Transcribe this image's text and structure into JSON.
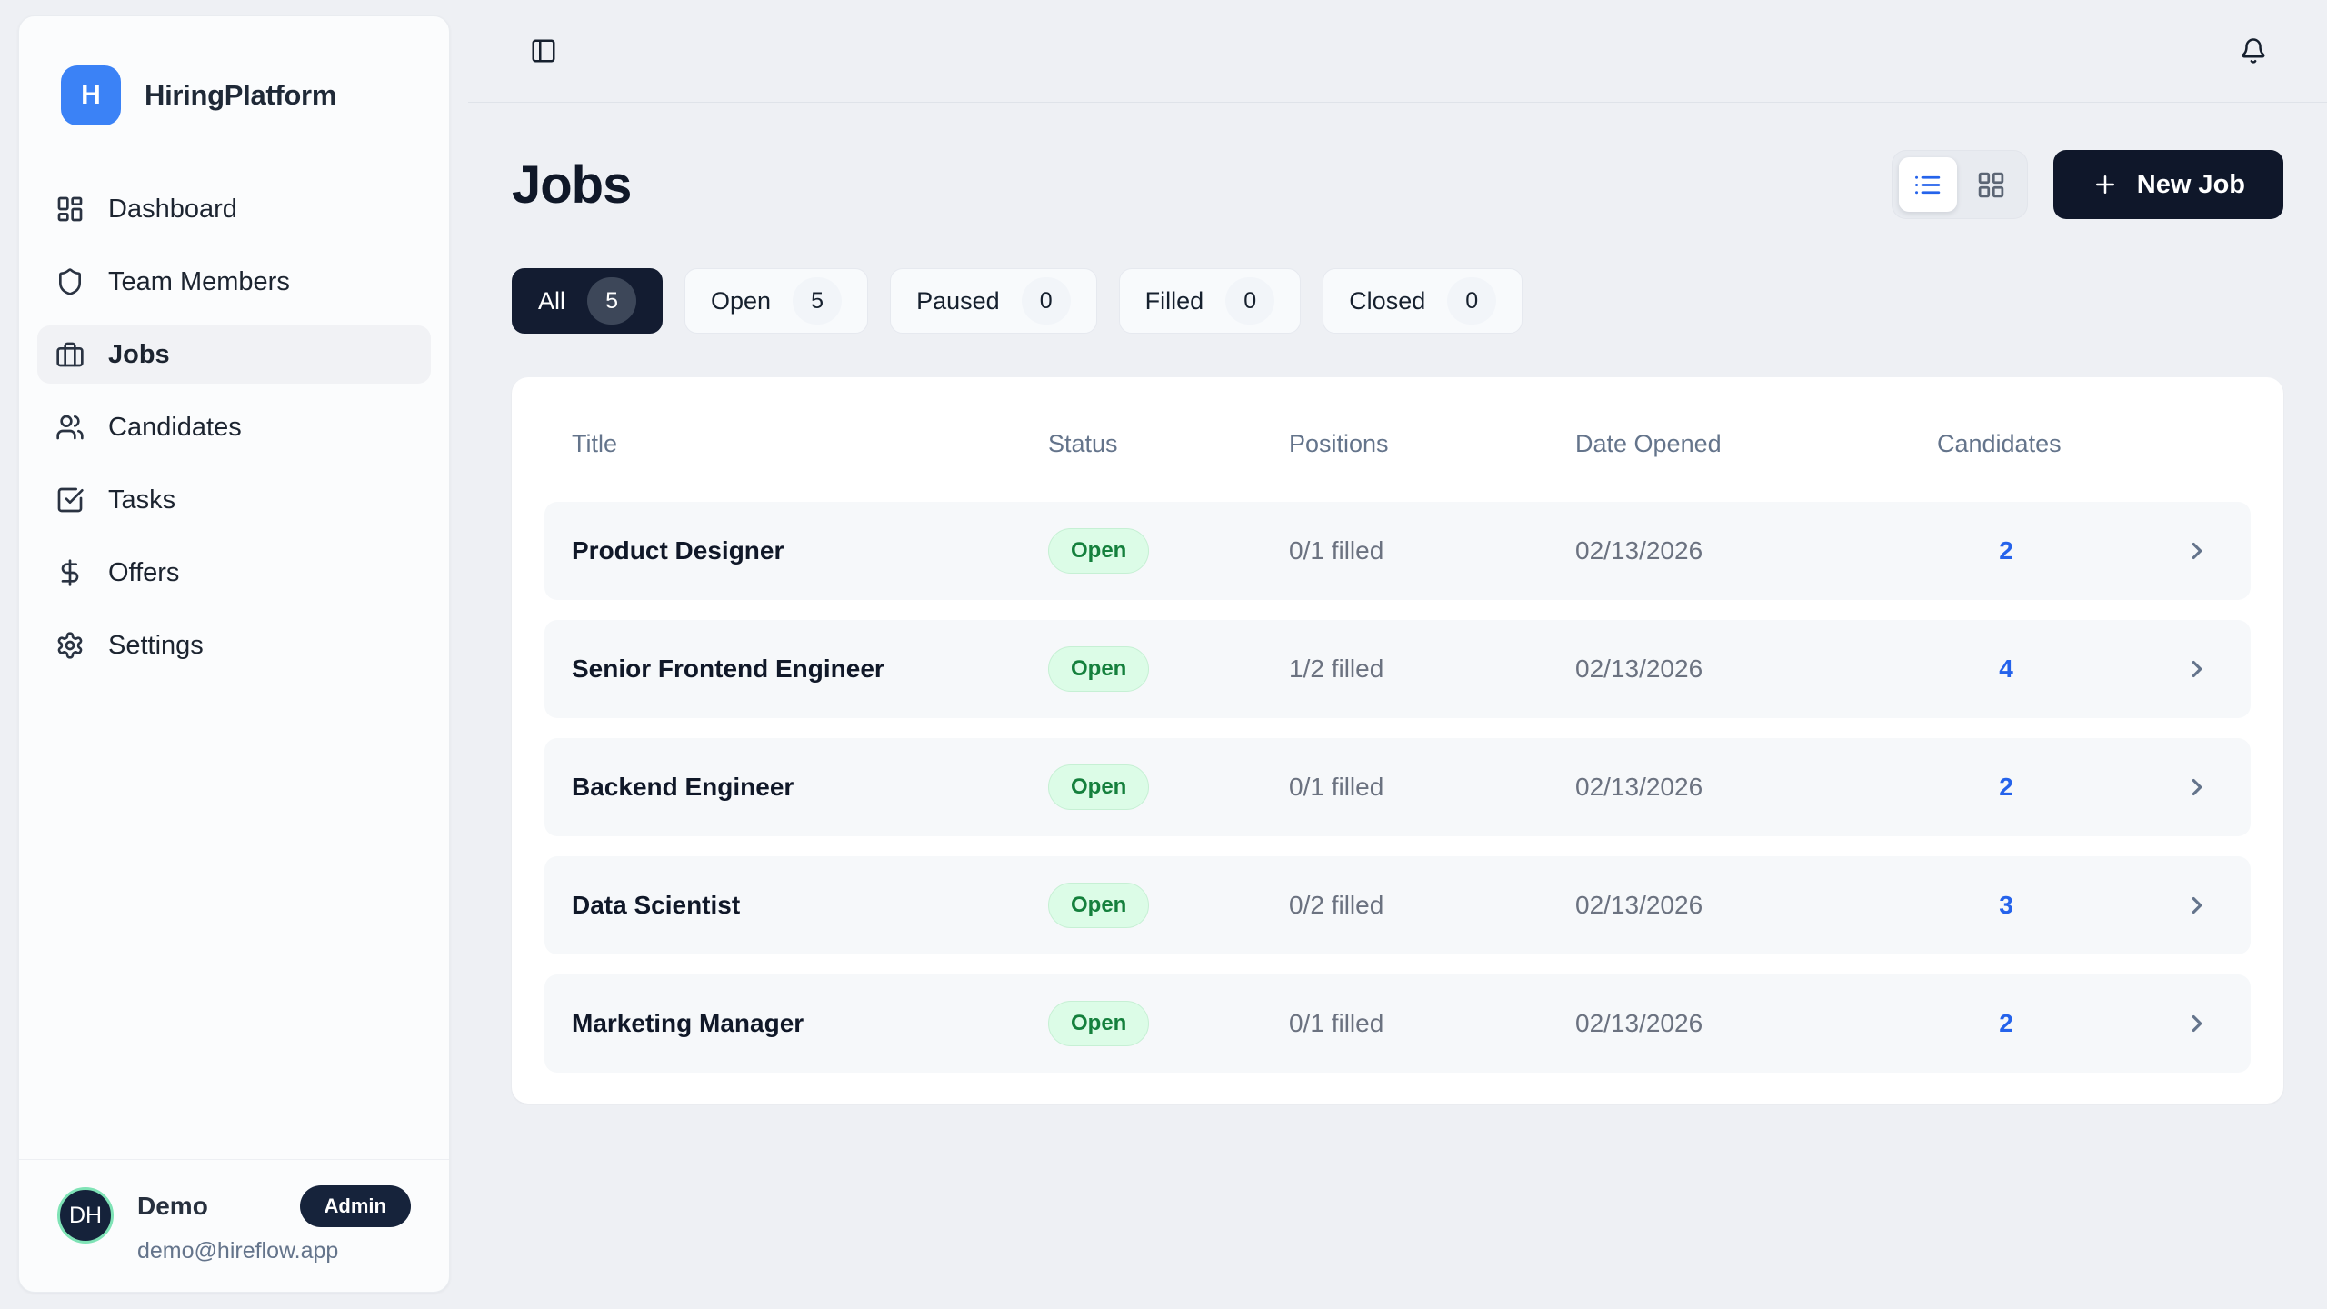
{
  "app": {
    "name": "HiringPlatform",
    "logo_letter": "H"
  },
  "sidebar": {
    "items": [
      {
        "label": "Dashboard",
        "icon": "dashboard-icon",
        "active": false
      },
      {
        "label": "Team Members",
        "icon": "shield-icon",
        "active": false
      },
      {
        "label": "Jobs",
        "icon": "briefcase-icon",
        "active": true
      },
      {
        "label": "Candidates",
        "icon": "users-icon",
        "active": false
      },
      {
        "label": "Tasks",
        "icon": "task-check-icon",
        "active": false
      },
      {
        "label": "Offers",
        "icon": "dollar-icon",
        "active": false
      },
      {
        "label": "Settings",
        "icon": "gear-icon",
        "active": false
      }
    ],
    "user": {
      "initials": "DH",
      "name": "Demo",
      "role_badge": "Admin",
      "email": "demo@hireflow.app"
    }
  },
  "topbar": {
    "icons": [
      "panel-left-icon",
      "bell-icon"
    ]
  },
  "header": {
    "title": "Jobs",
    "new_job_label": "New Job"
  },
  "view_modes": [
    {
      "name": "list-view-icon",
      "active": true
    },
    {
      "name": "grid-view-icon",
      "active": false
    }
  ],
  "filters": [
    {
      "label": "All",
      "count": "5",
      "active": true
    },
    {
      "label": "Open",
      "count": "5",
      "active": false
    },
    {
      "label": "Paused",
      "count": "0",
      "active": false
    },
    {
      "label": "Filled",
      "count": "0",
      "active": false
    },
    {
      "label": "Closed",
      "count": "0",
      "active": false
    }
  ],
  "table": {
    "columns": [
      "Title",
      "Status",
      "Positions",
      "Date Opened",
      "Candidates"
    ],
    "rows": [
      {
        "title": "Product Designer",
        "status": "Open",
        "positions": "0/1 filled",
        "date_opened": "02/13/2026",
        "candidates": "2"
      },
      {
        "title": "Senior Frontend Engineer",
        "status": "Open",
        "positions": "1/2 filled",
        "date_opened": "02/13/2026",
        "candidates": "4"
      },
      {
        "title": "Backend Engineer",
        "status": "Open",
        "positions": "0/1 filled",
        "date_opened": "02/13/2026",
        "candidates": "2"
      },
      {
        "title": "Data Scientist",
        "status": "Open",
        "positions": "0/2 filled",
        "date_opened": "02/13/2026",
        "candidates": "3"
      },
      {
        "title": "Marketing Manager",
        "status": "Open",
        "positions": "0/1 filled",
        "date_opened": "02/13/2026",
        "candidates": "2"
      }
    ]
  },
  "icons": {
    "panel-left-icon": "square with vertical divider",
    "bell-icon": "notification bell",
    "dashboard-icon": "four-tile dashboard grid",
    "shield-icon": "shield outline",
    "briefcase-icon": "briefcase outline",
    "users-icon": "two people outline",
    "task-check-icon": "square with checkmark",
    "dollar-icon": "dollar sign",
    "gear-icon": "settings gear",
    "list-view-icon": "bulleted list",
    "grid-view-icon": "four-square grid",
    "plus-icon": "plus sign",
    "chevron-right-icon": "right-pointing chevron"
  },
  "colors": {
    "page_bg": "#eef0f4",
    "sidebar_bg": "#fbfcfd",
    "accent_blue": "#3b82f6",
    "link_blue": "#2563eb",
    "dark_navy": "#0f172a",
    "status_open_bg": "#dcfce7",
    "status_open_text": "#15803d",
    "muted_text": "#64748b",
    "row_bg": "#f6f8fa"
  }
}
